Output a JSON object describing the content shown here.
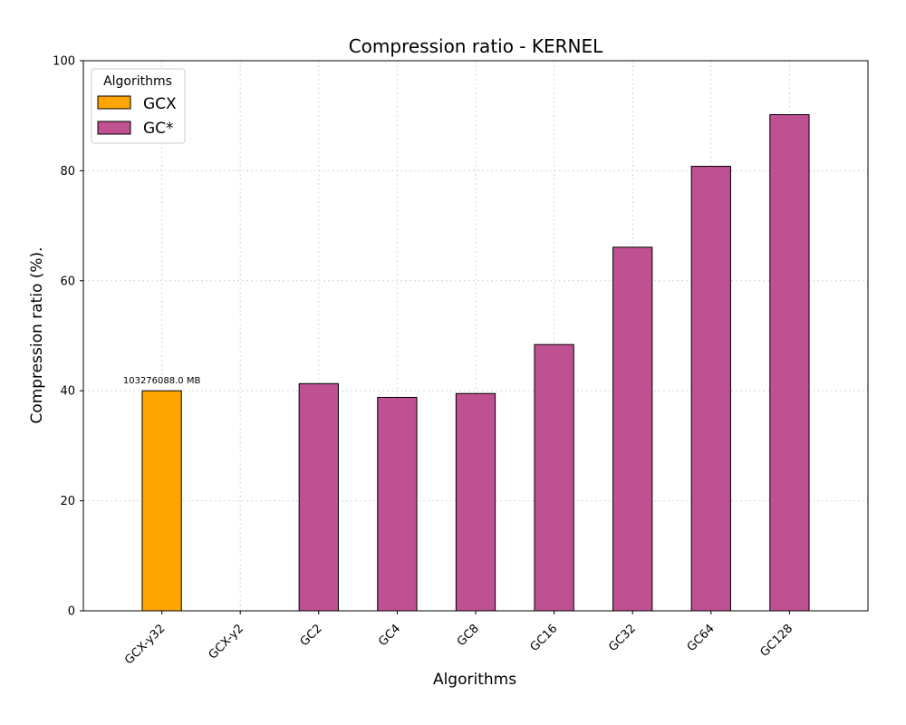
{
  "chart_data": {
    "type": "bar",
    "title": "Compression ratio -  KERNEL",
    "xlabel": "Algorithms",
    "ylabel": "Compression ratio (%).",
    "ylim": [
      0,
      100
    ],
    "yticks": [
      0,
      20,
      40,
      60,
      80,
      100
    ],
    "grid": true,
    "legend": {
      "title": "Algorithms",
      "placement": "top-left",
      "entries": [
        {
          "label": "GCX",
          "color": "#FFA500"
        },
        {
          "label": "GC*",
          "color": "#BF5092"
        }
      ]
    },
    "categories": [
      "GCX-y32",
      "GCX-y2",
      "GC2",
      "GC4",
      "GC8",
      "GC16",
      "GC32",
      "GC64",
      "GC128"
    ],
    "values": [
      40.0,
      null,
      41.3,
      38.8,
      39.5,
      48.4,
      66.1,
      80.8,
      90.2
    ],
    "groups": [
      "GCX",
      "GCX",
      "GC*",
      "GC*",
      "GC*",
      "GC*",
      "GC*",
      "GC*",
      "GC*"
    ],
    "data_labels": [
      "103276088.0 MB",
      "",
      "",
      "",
      "",
      "",
      "",
      "",
      ""
    ]
  }
}
